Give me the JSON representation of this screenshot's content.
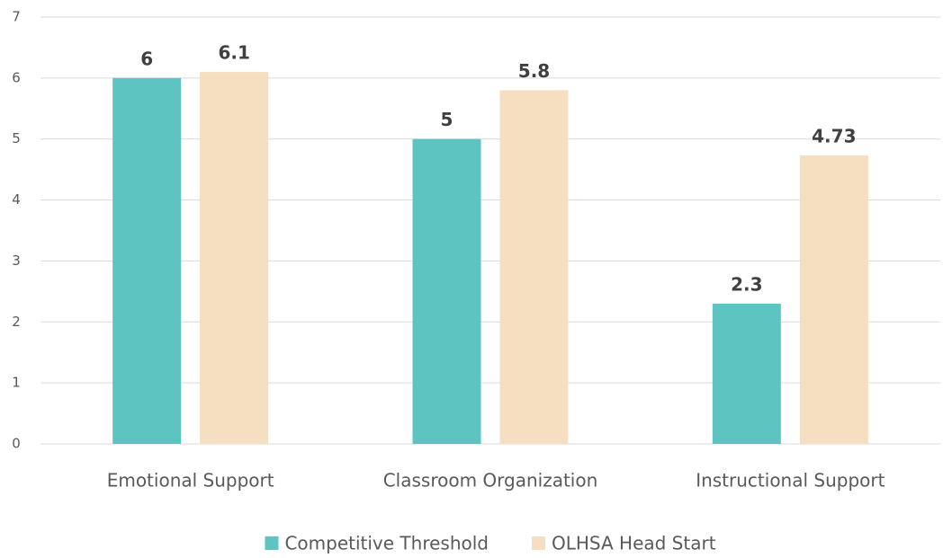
{
  "chart_data": {
    "type": "bar",
    "categories": [
      "Emotional Support",
      "Classroom Organization",
      "Instructional Support"
    ],
    "series": [
      {
        "name": "Competitive Threshold",
        "color": "#5ec4c1",
        "values": [
          6,
          5,
          2.3
        ]
      },
      {
        "name": "OLHSA Head Start",
        "color": "#f5dfc0",
        "values": [
          6.1,
          5.8,
          4.73
        ]
      }
    ],
    "ylim": [
      0,
      7
    ],
    "yticks": [
      0,
      1,
      2,
      3,
      4,
      5,
      6,
      7
    ],
    "grid": true,
    "legend": "bottom"
  }
}
